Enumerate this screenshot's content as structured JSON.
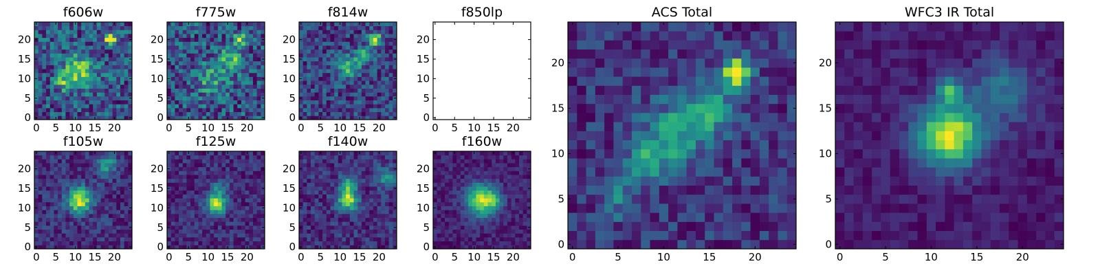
{
  "chart_data": [
    {
      "type": "heatmap",
      "title": "f606w",
      "cmap": "viridis",
      "grid_size": 25,
      "xlim": [
        0,
        24
      ],
      "ylim": [
        0,
        24
      ],
      "xticks": [
        0,
        5,
        10,
        15,
        20
      ],
      "yticks": [
        0,
        5,
        10,
        15,
        20
      ],
      "empty": false,
      "features": [
        {
          "x": 19,
          "y": 20,
          "amp": 1.0,
          "sigma": 0.9
        },
        {
          "x": 11,
          "y": 12,
          "amp": 0.55,
          "sigma": 3.0
        },
        {
          "x": 7,
          "y": 9,
          "amp": 0.35,
          "sigma": 1.5
        }
      ],
      "noise": 0.55,
      "base": 0.35,
      "seed": 11
    },
    {
      "type": "heatmap",
      "title": "f775w",
      "cmap": "viridis",
      "grid_size": 25,
      "xlim": [
        0,
        24
      ],
      "ylim": [
        0,
        24
      ],
      "xticks": [
        0,
        5,
        10,
        15,
        20
      ],
      "yticks": [
        0,
        5,
        10,
        15,
        20
      ],
      "empty": false,
      "features": [
        {
          "x": 18,
          "y": 20,
          "amp": 0.8,
          "sigma": 1.0
        },
        {
          "x": 16,
          "y": 15,
          "amp": 0.5,
          "sigma": 2.0
        },
        {
          "x": 11,
          "y": 10,
          "amp": 0.35,
          "sigma": 3.0
        }
      ],
      "noise": 0.6,
      "base": 0.35,
      "seed": 23
    },
    {
      "type": "heatmap",
      "title": "f814w",
      "cmap": "viridis",
      "grid_size": 25,
      "xlim": [
        0,
        24
      ],
      "ylim": [
        0,
        24
      ],
      "xticks": [
        0,
        5,
        10,
        15,
        20
      ],
      "yticks": [
        0,
        5,
        10,
        15,
        20
      ],
      "empty": false,
      "features": [
        {
          "x": 19,
          "y": 20,
          "amp": 0.9,
          "sigma": 1.2
        },
        {
          "x": 12,
          "y": 13,
          "amp": 0.6,
          "sigma": 2.0
        },
        {
          "x": 16,
          "y": 16,
          "amp": 0.5,
          "sigma": 1.5
        }
      ],
      "noise": 0.55,
      "base": 0.32,
      "seed": 37
    },
    {
      "type": "heatmap",
      "title": "f850lp",
      "cmap": "viridis",
      "grid_size": 25,
      "xlim": [
        0,
        24
      ],
      "ylim": [
        0,
        24
      ],
      "xticks": [
        0,
        5,
        10,
        15,
        20
      ],
      "yticks": [
        0,
        5,
        10,
        15,
        20
      ],
      "empty": true,
      "features": [],
      "noise": 0,
      "base": 0,
      "seed": 1
    },
    {
      "type": "heatmap",
      "title": "f105w",
      "cmap": "viridis",
      "grid_size": 25,
      "xlim": [
        0,
        24
      ],
      "ylim": [
        0,
        24
      ],
      "xticks": [
        0,
        5,
        10,
        15,
        20
      ],
      "yticks": [
        0,
        5,
        10,
        15,
        20
      ],
      "empty": false,
      "features": [
        {
          "x": 11,
          "y": 12,
          "amp": 0.95,
          "sigma": 2.2
        },
        {
          "x": 18,
          "y": 21,
          "amp": 0.45,
          "sigma": 2.0
        }
      ],
      "noise": 0.35,
      "base": 0.3,
      "seed": 53
    },
    {
      "type": "heatmap",
      "title": "f125w",
      "cmap": "viridis",
      "grid_size": 25,
      "xlim": [
        0,
        24
      ],
      "ylim": [
        0,
        24
      ],
      "xticks": [
        0,
        5,
        10,
        15,
        20
      ],
      "yticks": [
        0,
        5,
        10,
        15,
        20
      ],
      "empty": false,
      "features": [
        {
          "x": 12,
          "y": 11,
          "amp": 1.0,
          "sigma": 1.8
        },
        {
          "x": 13,
          "y": 15,
          "amp": 0.4,
          "sigma": 1.5
        }
      ],
      "noise": 0.35,
      "base": 0.3,
      "seed": 67
    },
    {
      "type": "heatmap",
      "title": "f140w",
      "cmap": "viridis",
      "grid_size": 25,
      "xlim": [
        0,
        24
      ],
      "ylim": [
        0,
        24
      ],
      "xticks": [
        0,
        5,
        10,
        15,
        20
      ],
      "yticks": [
        0,
        5,
        10,
        15,
        20
      ],
      "empty": false,
      "features": [
        {
          "x": 12,
          "y": 12,
          "amp": 0.9,
          "sigma": 1.8
        },
        {
          "x": 12,
          "y": 16,
          "amp": 0.55,
          "sigma": 1.5
        },
        {
          "x": 22,
          "y": 18,
          "amp": 0.45,
          "sigma": 1.8
        }
      ],
      "noise": 0.35,
      "base": 0.3,
      "seed": 79
    },
    {
      "type": "heatmap",
      "title": "f160w",
      "cmap": "viridis",
      "grid_size": 25,
      "xlim": [
        0,
        24
      ],
      "ylim": [
        0,
        24
      ],
      "xticks": [
        0,
        5,
        10,
        15,
        20
      ],
      "yticks": [
        0,
        5,
        10,
        15,
        20
      ],
      "empty": false,
      "features": [
        {
          "x": 12,
          "y": 12,
          "amp": 1.0,
          "sigma": 2.8
        },
        {
          "x": 15,
          "y": 12,
          "amp": 0.35,
          "sigma": 1.2
        }
      ],
      "noise": 0.25,
      "base": 0.3,
      "seed": 97
    },
    {
      "type": "heatmap",
      "title": "ACS Total",
      "cmap": "viridis",
      "grid_size": 25,
      "xlim": [
        0,
        24
      ],
      "ylim": [
        0,
        24
      ],
      "xticks": [
        0,
        5,
        10,
        15,
        20
      ],
      "yticks": [
        0,
        5,
        10,
        15,
        20
      ],
      "empty": false,
      "features": [
        {
          "x": 18,
          "y": 19,
          "amp": 1.0,
          "sigma": 1.1
        },
        {
          "x": 15,
          "y": 15,
          "amp": 0.45,
          "sigma": 2.0
        },
        {
          "x": 11,
          "y": 12,
          "amp": 0.45,
          "sigma": 2.5
        },
        {
          "x": 8,
          "y": 9,
          "amp": 0.45,
          "sigma": 1.5
        },
        {
          "x": 5,
          "y": 5,
          "amp": 0.3,
          "sigma": 1.5
        }
      ],
      "noise": 0.35,
      "base": 0.35,
      "seed": 113
    },
    {
      "type": "heatmap",
      "title": "WFC3 IR Total",
      "cmap": "viridis",
      "grid_size": 25,
      "xlim": [
        0,
        24
      ],
      "ylim": [
        0,
        24
      ],
      "xticks": [
        0,
        5,
        10,
        15,
        20
      ],
      "yticks": [
        0,
        5,
        10,
        15,
        20
      ],
      "empty": false,
      "features": [
        {
          "x": 12,
          "y": 12,
          "amp": 1.0,
          "sigma": 2.4
        },
        {
          "x": 12,
          "y": 17,
          "amp": 0.55,
          "sigma": 1.0
        },
        {
          "x": 18,
          "y": 17,
          "amp": 0.35,
          "sigma": 2.5
        }
      ],
      "noise": 0.18,
      "base": 0.25,
      "seed": 131
    }
  ]
}
